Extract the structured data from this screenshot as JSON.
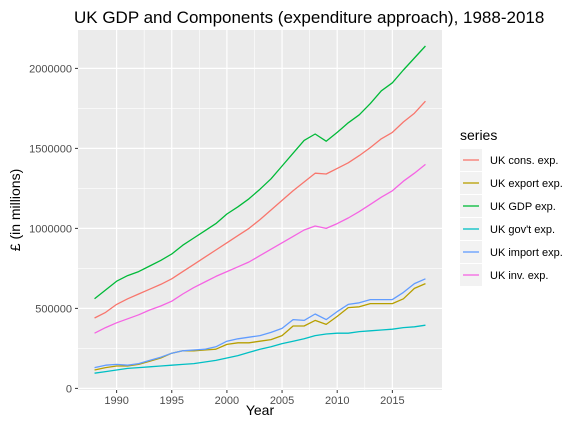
{
  "chart_data": {
    "type": "line",
    "title": "UK GDP and Components (expenditure approach), 1988-2018",
    "xlabel": "Year",
    "ylabel": "£ (in millions)",
    "xlim": [
      1986.5,
      2019.5
    ],
    "ylim": [
      -10000,
      2240000
    ],
    "x_ticks": [
      1990,
      1995,
      2000,
      2005,
      2010,
      2015
    ],
    "x_tick_labels": [
      "1990",
      "1995",
      "2000",
      "2005",
      "2010",
      "2015"
    ],
    "y_ticks": [
      0,
      500000,
      1000000,
      1500000,
      2000000
    ],
    "y_tick_labels": [
      "0",
      "500000",
      "1000000",
      "1500000",
      "2000000"
    ],
    "legend": {
      "title": "series",
      "position": "right"
    },
    "grid": true,
    "x": [
      1988,
      1989,
      1990,
      1991,
      1992,
      1993,
      1994,
      1995,
      1996,
      1997,
      1998,
      1999,
      2000,
      2001,
      2002,
      2003,
      2004,
      2005,
      2006,
      2007,
      2008,
      2009,
      2010,
      2011,
      2012,
      2013,
      2014,
      2015,
      2016,
      2017,
      2018
    ],
    "series": [
      {
        "name": "UK cons. exp.",
        "color": "#F8766D",
        "values": [
          440000,
          475000,
          525000,
          560000,
          590000,
          620000,
          650000,
          685000,
          730000,
          775000,
          820000,
          865000,
          910000,
          955000,
          1000000,
          1055000,
          1115000,
          1175000,
          1235000,
          1290000,
          1345000,
          1340000,
          1375000,
          1410000,
          1455000,
          1505000,
          1560000,
          1600000,
          1665000,
          1720000,
          1795000
        ]
      },
      {
        "name": "UK export exp.",
        "color": "#B79F00",
        "values": [
          115000,
          130000,
          140000,
          140000,
          150000,
          170000,
          190000,
          220000,
          235000,
          235000,
          240000,
          245000,
          275000,
          285000,
          285000,
          295000,
          305000,
          330000,
          390000,
          390000,
          425000,
          400000,
          450000,
          505000,
          510000,
          530000,
          530000,
          530000,
          560000,
          625000,
          655000
        ]
      },
      {
        "name": "UK GDP exp.",
        "color": "#00BA38",
        "values": [
          560000,
          615000,
          670000,
          705000,
          730000,
          765000,
          800000,
          840000,
          895000,
          940000,
          985000,
          1030000,
          1090000,
          1135000,
          1185000,
          1245000,
          1310000,
          1390000,
          1470000,
          1550000,
          1590000,
          1545000,
          1600000,
          1660000,
          1710000,
          1780000,
          1860000,
          1910000,
          1990000,
          2065000,
          2140000
        ]
      },
      {
        "name": "UK gov't exp.",
        "color": "#00BFC4",
        "values": [
          95000,
          105000,
          115000,
          125000,
          130000,
          135000,
          140000,
          145000,
          150000,
          155000,
          165000,
          175000,
          190000,
          205000,
          225000,
          245000,
          260000,
          280000,
          295000,
          310000,
          330000,
          340000,
          345000,
          345000,
          355000,
          360000,
          365000,
          370000,
          380000,
          385000,
          395000
        ]
      },
      {
        "name": "UK import exp.",
        "color": "#619CFF",
        "values": [
          130000,
          145000,
          150000,
          145000,
          155000,
          175000,
          195000,
          220000,
          235000,
          240000,
          245000,
          260000,
          295000,
          310000,
          320000,
          330000,
          350000,
          375000,
          430000,
          425000,
          465000,
          430000,
          480000,
          525000,
          535000,
          555000,
          555000,
          555000,
          600000,
          655000,
          685000
        ]
      },
      {
        "name": "UK inv. exp.",
        "color": "#F564E3",
        "values": [
          345000,
          380000,
          410000,
          435000,
          460000,
          490000,
          515000,
          545000,
          590000,
          630000,
          665000,
          700000,
          730000,
          760000,
          790000,
          830000,
          870000,
          910000,
          950000,
          990000,
          1015000,
          1000000,
          1030000,
          1065000,
          1105000,
          1150000,
          1195000,
          1235000,
          1295000,
          1345000,
          1400000
        ]
      }
    ]
  }
}
